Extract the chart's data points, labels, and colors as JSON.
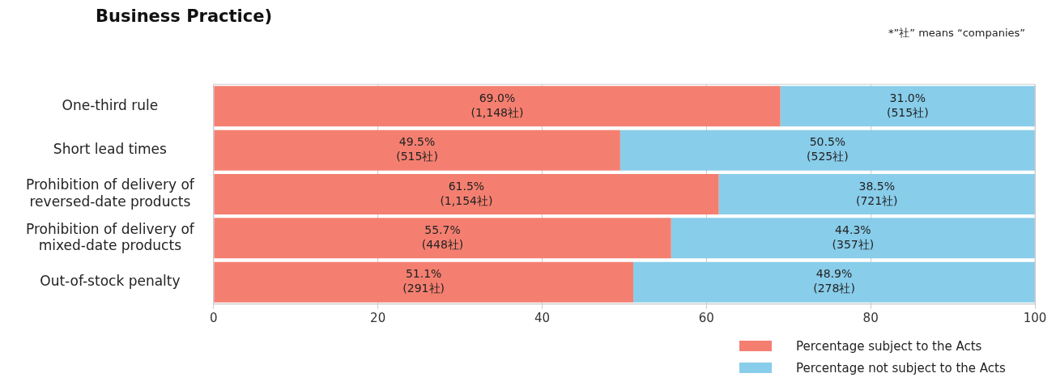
{
  "chart_data": {
    "type": "bar",
    "orientation": "horizontal",
    "stacked": true,
    "title": "Business Practice)",
    "annotations": [
      "*”社” means “companies”"
    ],
    "categories": [
      "One-third rule",
      "Short lead times",
      "Prohibition of delivery of reversed-date products",
      "Prohibition of delivery of mixed-date products",
      "Out-of-stock penalty"
    ],
    "series": [
      {
        "name": "Percentage subject to the Acts",
        "color": "#f47f70",
        "values": [
          69.0,
          49.5,
          61.5,
          55.7,
          51.1
        ],
        "value_labels": [
          "69.0%\n(1,148社)",
          "49.5%\n(515社)",
          "61.5%\n(1,154社)",
          "55.7%\n(448社)",
          "51.1%\n(291社)"
        ]
      },
      {
        "name": "Percentage not subject to the Acts",
        "color": "#88cdea",
        "values": [
          31.0,
          50.5,
          38.5,
          44.3,
          48.9
        ],
        "value_labels": [
          "31.0%\n(515社)",
          "50.5%\n(525社)",
          "38.5%\n(721社)",
          "44.3%\n(357社)",
          "48.9%\n(278社)"
        ]
      }
    ],
    "xlim": [
      0,
      100
    ],
    "xticks": [
      0,
      20,
      40,
      60,
      80,
      100
    ],
    "grid": "x",
    "legend": "bottom right"
  }
}
